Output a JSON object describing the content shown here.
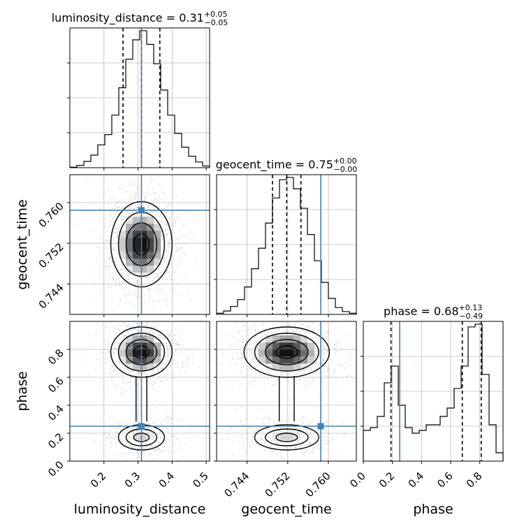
{
  "chart_data": {
    "type": "corner",
    "parameters": [
      "luminosity_distance",
      "geocent_time",
      "phase"
    ],
    "injection": {
      "luminosity_distance": 0.31,
      "geocent_time": 0.7585,
      "phase": 0.25
    },
    "colors": {
      "injection": "#4682b4",
      "hist": "#000000",
      "grid": "#bbbbbb",
      "scatter": "#b0b0b0"
    },
    "marginals": [
      {
        "parameter": "luminosity_distance",
        "title": {
          "name": "luminosity_distance",
          "median": "0.31",
          "plus": "+0.05",
          "minus": "−0.05"
        },
        "range": [
          0.1,
          0.51
        ],
        "quantiles": [
          0.256,
          0.31,
          0.364
        ],
        "bin_edges": [
          0.1,
          0.1205,
          0.141,
          0.1615,
          0.182,
          0.2025,
          0.223,
          0.2435,
          0.264,
          0.2845,
          0.305,
          0.3255,
          0.346,
          0.3665,
          0.387,
          0.4075,
          0.428,
          0.4485,
          0.469,
          0.4895,
          0.51
        ],
        "counts": [
          0.5,
          2,
          5.5,
          11,
          20,
          29,
          46,
          70,
          95,
          112,
          120,
          108,
          91,
          68,
          46,
          30,
          18,
          10,
          5,
          1.5
        ],
        "ticks": [
          0.2,
          0.3,
          0.4,
          0.5
        ]
      },
      {
        "parameter": "geocent_time",
        "title": {
          "name": "geocent_time",
          "median": "0.75",
          "plus": "+0.00",
          "minus": "−0.00"
        },
        "range": [
          0.738,
          0.7655
        ],
        "quantiles": [
          0.749,
          0.7518,
          0.7546
        ],
        "bin_edges": [
          0.738,
          0.739375,
          0.74075,
          0.742125,
          0.7435,
          0.744875,
          0.74625,
          0.747625,
          0.749,
          0.750375,
          0.75175,
          0.753125,
          0.7545,
          0.755875,
          0.75725,
          0.758625,
          0.76,
          0.761375,
          0.76275,
          0.764125,
          0.7655
        ],
        "counts": [
          1,
          3,
          7,
          13,
          24,
          40,
          58,
          80,
          102,
          118,
          120,
          110,
          93,
          70,
          47,
          28,
          14,
          6,
          2.5,
          1
        ],
        "ticks": [
          0.744,
          0.752,
          0.76
        ]
      },
      {
        "parameter": "phase",
        "title": {
          "name": "phase",
          "median": "0.68",
          "plus": "+0.13",
          "minus": "−0.49"
        },
        "range": [
          0,
          0.96
        ],
        "quantiles": [
          0.19,
          0.68,
          0.81
        ],
        "bin_edges": [
          0,
          0.048,
          0.096,
          0.144,
          0.192,
          0.24,
          0.288,
          0.336,
          0.384,
          0.432,
          0.48,
          0.528,
          0.576,
          0.624,
          0.672,
          0.72,
          0.768,
          0.816,
          0.864,
          0.912,
          0.96
        ],
        "counts": [
          11,
          12,
          16,
          28,
          34,
          20,
          12,
          10,
          11,
          13,
          13,
          16,
          19,
          26,
          34,
          48,
          49,
          31,
          13,
          3
        ],
        "ticks": [
          0.0,
          0.2,
          0.4,
          0.6,
          0.8
        ]
      }
    ],
    "pairs": [
      {
        "x": "luminosity_distance",
        "y": "geocent_time",
        "x_range": [
          0.1,
          0.51
        ],
        "y_range": [
          0.738,
          0.7655
        ],
        "modes": [
          {
            "x": 0.31,
            "y": 0.7518,
            "sx": 0.045,
            "sy": 0.0042,
            "w": 1
          }
        ],
        "contour_levels": [
          0.5,
          1.0,
          1.5,
          2.0
        ]
      },
      {
        "x": "luminosity_distance",
        "y": "phase",
        "x_range": [
          0.1,
          0.51
        ],
        "y_range": [
          0,
          1
        ],
        "modes": [
          {
            "x": 0.31,
            "y": 0.78,
            "sx": 0.045,
            "sy": 0.09,
            "w": 0.7
          },
          {
            "x": 0.31,
            "y": 0.17,
            "sx": 0.045,
            "sy": 0.06,
            "w": 0.3
          }
        ],
        "contour_levels": [
          0.5,
          1.0,
          1.5,
          2.0
        ]
      },
      {
        "x": "geocent_time",
        "y": "phase",
        "x_range": [
          0.738,
          0.7655
        ],
        "y_range": [
          0,
          1
        ],
        "modes": [
          {
            "x": 0.7518,
            "y": 0.78,
            "sx": 0.0042,
            "sy": 0.09,
            "w": 0.7
          },
          {
            "x": 0.7518,
            "y": 0.17,
            "sx": 0.0042,
            "sy": 0.06,
            "w": 0.3
          }
        ],
        "contour_levels": [
          0.5,
          1.0,
          1.5,
          2.0
        ]
      }
    ],
    "axis_ticks": {
      "luminosity_distance": [
        "0.2",
        "0.3",
        "0.4",
        "0.5"
      ],
      "geocent_time": [
        "0.744",
        "0.752",
        "0.760"
      ],
      "phase_x": [
        "0.0",
        "0.2",
        "0.4",
        "0.6",
        "0.8"
      ],
      "phase_y": [
        "0.0",
        "0.2",
        "0.4",
        "0.6",
        "0.8"
      ]
    },
    "xlabels": [
      "luminosity_distance",
      "geocent_time",
      "phase"
    ],
    "ylabels": [
      "geocent_time",
      "phase"
    ],
    "grid": true
  }
}
